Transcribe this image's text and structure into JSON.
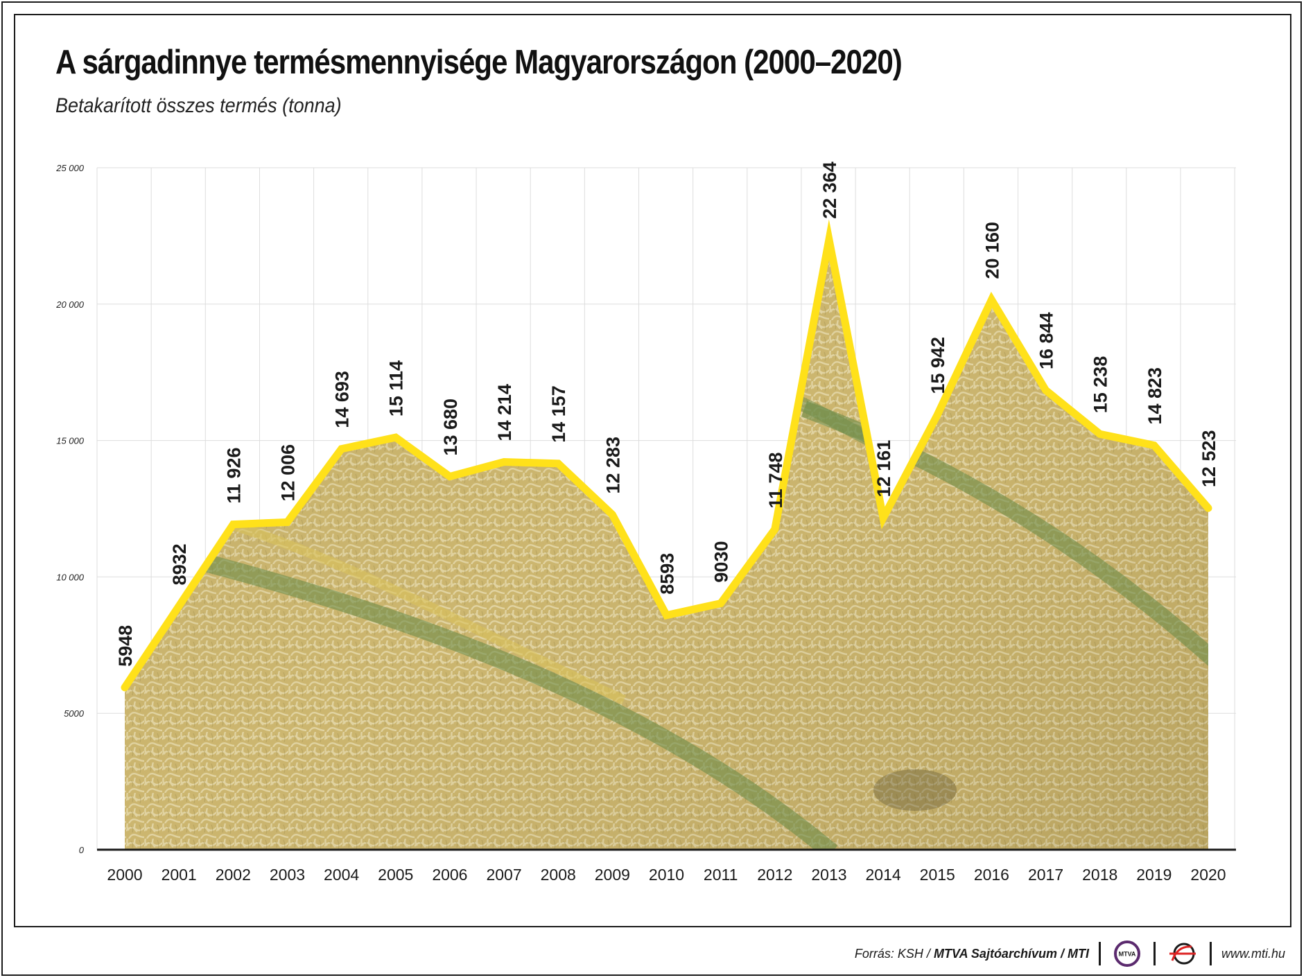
{
  "title": "A sárgadinnye termésmennyisége Magyarországon (2000–2020)",
  "subtitle": "Betakarított összes termés (tonna)",
  "chart_data": {
    "type": "line",
    "title": "A sárgadinnye termésmennyisége Magyarországon (2000–2020)",
    "subtitle": "Betakarított összes termés (tonna)",
    "x": [
      "2000",
      "2001",
      "2002",
      "2003",
      "2004",
      "2005",
      "2006",
      "2007",
      "2008",
      "2009",
      "2010",
      "2011",
      "2012",
      "2013",
      "2014",
      "2015",
      "2016",
      "2017",
      "2018",
      "2019",
      "2020"
    ],
    "values": [
      5948,
      8932,
      11926,
      12006,
      14693,
      15114,
      13680,
      14214,
      14157,
      12283,
      8593,
      9030,
      11748,
      22364,
      12161,
      15942,
      20160,
      16844,
      15238,
      14823,
      12523
    ],
    "value_labels": [
      "5948",
      "8932",
      "11 926",
      "12 006",
      "14 693",
      "15 114",
      "13 680",
      "14 214",
      "14 157",
      "12 283",
      "8593",
      "9030",
      "11 748",
      "22 364",
      "12 161",
      "15 942",
      "20 160",
      "16 844",
      "15 238",
      "14 823",
      "12 523"
    ],
    "ylim": [
      0,
      25000
    ],
    "yticks": [
      0,
      5000,
      10000,
      15000,
      20000,
      25000
    ],
    "ytick_labels": [
      "0",
      "5000",
      "10 000",
      "15 000",
      "20 000",
      "25 000"
    ],
    "grid": true,
    "line_color": "#ffe11a",
    "fill": "melon texture under the line"
  },
  "footer": {
    "source_prefix": "Forrás: KSH /",
    "source_bold": "MTVA Sajtóarchívum / MTI",
    "logo1_text": "MTVA",
    "website": "www.mti.hu"
  },
  "colors": {
    "line": "#ffe11a",
    "frame": "#1a1a1a",
    "grid": "#dddddd",
    "melon_base": "#c9b36a",
    "melon_stripe": "#6f8f4d",
    "melon_net": "#ddd2a6"
  }
}
